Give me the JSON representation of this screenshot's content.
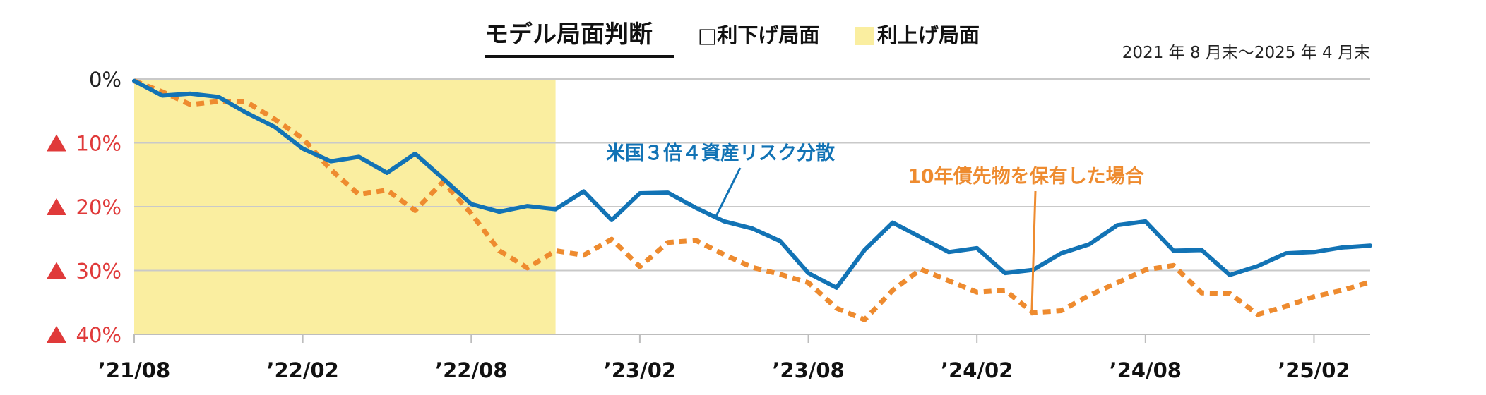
{
  "chart_data": {
    "type": "line",
    "title": "モデル局面判断",
    "legend": [
      {
        "label": "□利下げ局面",
        "color": "#ffffff"
      },
      {
        "label": "利上げ局面",
        "color": "#faeea0"
      }
    ],
    "period_note": "2021 年 8 月末〜2025 年 4 月末",
    "x": [
      "2021-08",
      "2021-09",
      "2021-10",
      "2021-11",
      "2021-12",
      "2022-01",
      "2022-02",
      "2022-03",
      "2022-04",
      "2022-05",
      "2022-06",
      "2022-07",
      "2022-08",
      "2022-09",
      "2022-10",
      "2022-11",
      "2022-12",
      "2023-01",
      "2023-02",
      "2023-03",
      "2023-04",
      "2023-05",
      "2023-06",
      "2023-07",
      "2023-08",
      "2023-09",
      "2023-10",
      "2023-11",
      "2023-12",
      "2024-01",
      "2024-02",
      "2024-03",
      "2024-04",
      "2024-05",
      "2024-06",
      "2024-07",
      "2024-08",
      "2024-09",
      "2024-10",
      "2024-11",
      "2024-12",
      "2025-01",
      "2025-02",
      "2025-03",
      "2025-04"
    ],
    "x_ticks": [
      {
        "value": "2021-08",
        "label": "’21/08"
      },
      {
        "value": "2022-02",
        "label": "’22/02"
      },
      {
        "value": "2022-08",
        "label": "’22/08"
      },
      {
        "value": "2023-02",
        "label": "’23/02"
      },
      {
        "value": "2023-08",
        "label": "’23/08"
      },
      {
        "value": "2024-02",
        "label": "’24/02"
      },
      {
        "value": "2024-08",
        "label": "’24/08"
      },
      {
        "value": "2025-02",
        "label": "’25/02"
      }
    ],
    "y_ticks": [
      {
        "value": 0,
        "label": "0%"
      },
      {
        "value": -10,
        "label": "▲10%"
      },
      {
        "value": -20,
        "label": "▲20%"
      },
      {
        "value": -30,
        "label": "▲30%"
      },
      {
        "value": -40,
        "label": "▲40%"
      }
    ],
    "ylim": [
      -40,
      0
    ],
    "shaded_region": {
      "from": "2021-08",
      "to": "2022-11",
      "label": "利上げ局面",
      "color": "#faeea0"
    },
    "series": [
      {
        "name": "米国3倍4資産リスク分散",
        "color": "#1273b5",
        "style": "solid",
        "values": [
          -0.3,
          -2.6,
          -2.3,
          -2.8,
          -5.3,
          -7.5,
          -10.9,
          -12.9,
          -12.2,
          -14.7,
          -11.7,
          -15.6,
          -19.6,
          -20.8,
          -19.9,
          -20.4,
          -17.6,
          -22.1,
          -17.9,
          -17.8,
          -20.2,
          -22.3,
          -23.4,
          -25.4,
          -30.4,
          -32.7,
          -26.8,
          -22.5,
          -24.8,
          -27.1,
          -26.5,
          -30.4,
          -29.9,
          -27.3,
          -25.9,
          -22.9,
          -22.3,
          -26.9,
          -26.8,
          -30.7,
          -29.3,
          -27.3,
          -27.1,
          -26.4,
          -26.1
        ]
      },
      {
        "name": "10年債先物を保有した場合",
        "color": "#ee8b2f",
        "style": "dashed",
        "values": [
          -0.3,
          -2.0,
          -4.0,
          -3.5,
          -3.6,
          -6.3,
          -9.3,
          -14.2,
          -18.1,
          -17.4,
          -20.6,
          -16.1,
          -21.1,
          -26.9,
          -29.6,
          -26.9,
          -27.6,
          -25.1,
          -29.4,
          -25.6,
          -25.3,
          -27.5,
          -29.5,
          -30.6,
          -31.9,
          -35.9,
          -37.7,
          -33.1,
          -29.8,
          -31.6,
          -33.4,
          -33.1,
          -36.6,
          -36.3,
          -33.9,
          -31.9,
          -29.9,
          -29.2,
          -33.5,
          -33.6,
          -36.9,
          -35.6,
          -34.1,
          -33.1,
          -31.8
        ]
      }
    ],
    "annotations": [
      {
        "series": 0,
        "text": "米国３倍４資産リスク分散"
      },
      {
        "series": 1,
        "text": "10年債先物を保有した場合"
      }
    ]
  }
}
